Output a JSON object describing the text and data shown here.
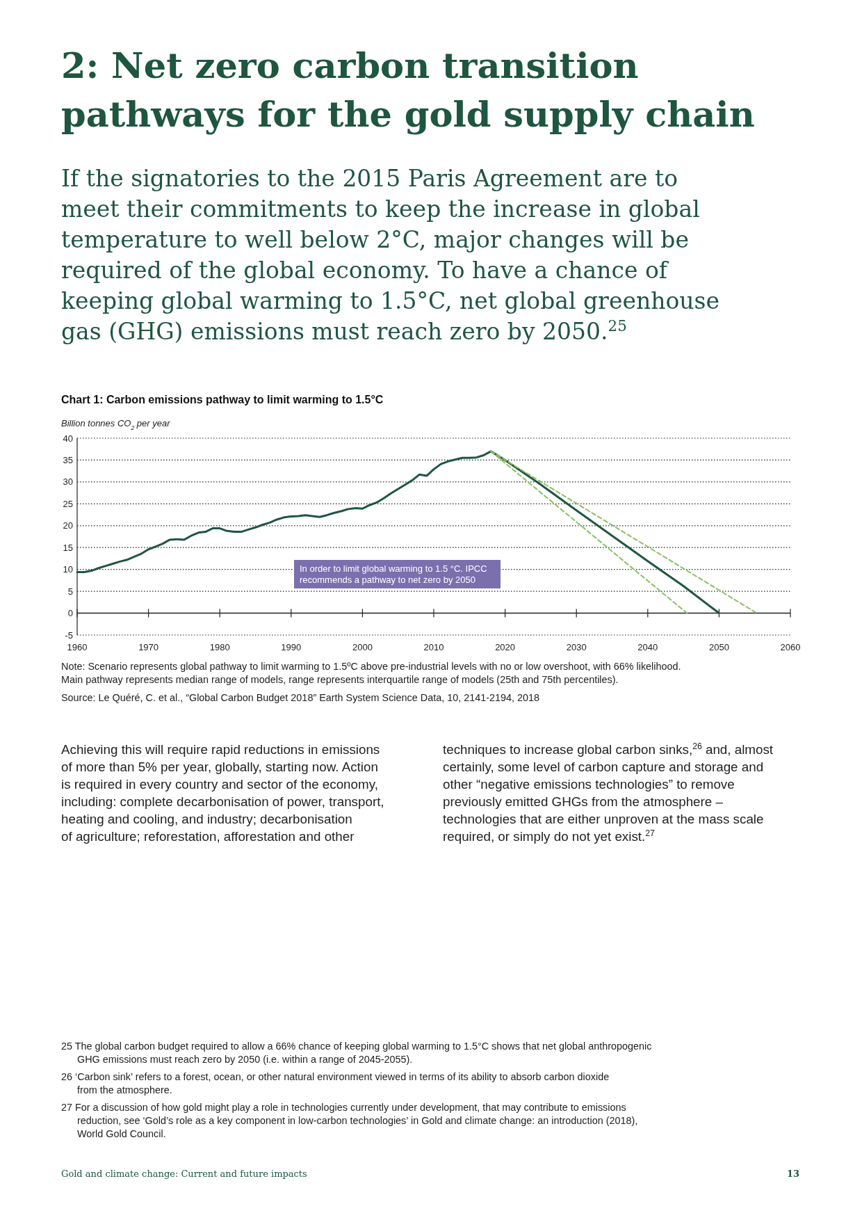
{
  "chart_data": {
    "type": "line",
    "title": "Chart 1: Carbon emissions pathway to limit warming to 1.5°C",
    "ylabel": "Billion tonnes CO$_{2}$ per year",
    "xlim": [
      1960,
      2060
    ],
    "xticks": [
      1960,
      1970,
      1980,
      1990,
      2000,
      2010,
      2020,
      2030,
      2040,
      2050,
      2060
    ],
    "ylim": [
      -5,
      40
    ],
    "yticks": [
      -5,
      0,
      5,
      10,
      15,
      20,
      25,
      30,
      35,
      40
    ],
    "grid": "y",
    "marker": "none",
    "series": [
      {
        "color": "#1e5640",
        "line_style": "solid",
        "x": [
          1960,
          1961,
          1962,
          1963,
          1964,
          1965,
          1966,
          1967,
          1968,
          1969,
          1970,
          1971,
          1972,
          1973,
          1974,
          1975,
          1976,
          1977,
          1978,
          1979,
          1980,
          1981,
          1982,
          1983,
          1984,
          1985,
          1986,
          1987,
          1988,
          1989,
          1990,
          1991,
          1992,
          1993,
          1994,
          1995,
          1996,
          1997,
          1998,
          1999,
          2000,
          2001,
          2002,
          2003,
          2004,
          2005,
          2006,
          2007,
          2008,
          2009,
          2010,
          2011,
          2012,
          2013,
          2014,
          2015,
          2016,
          2017,
          2018,
          2020,
          2025,
          2030,
          2035,
          2040,
          2045,
          2050
        ],
        "values": [
          9.4,
          9.4,
          9.7,
          10.3,
          10.8,
          11.3,
          11.8,
          12.2,
          12.9,
          13.6,
          14.6,
          15.2,
          15.9,
          16.8,
          16.9,
          16.8,
          17.7,
          18.4,
          18.6,
          19.4,
          19.4,
          18.8,
          18.6,
          18.6,
          19.1,
          19.6,
          20.2,
          20.7,
          21.4,
          21.9,
          22.1,
          22.2,
          22.4,
          22.2,
          22.0,
          22.4,
          22.9,
          23.3,
          23.8,
          24.0,
          23.9,
          24.7,
          25.3,
          26.3,
          27.4,
          28.4,
          29.4,
          30.4,
          31.7,
          31.4,
          32.9,
          34.1,
          34.7,
          35.1,
          35.5,
          35.5,
          35.6,
          36.1,
          37.0,
          35.0,
          29.4,
          23.5,
          17.7,
          11.9,
          6.2,
          0
        ]
      },
      {
        "color": "#8cc063",
        "line_style": "dashed",
        "x": [
          2018,
          2045.5
        ],
        "values": [
          37.0,
          0
        ]
      },
      {
        "color": "#8cc063",
        "line_style": "dashed",
        "x": [
          2018,
          2055.3
        ],
        "values": [
          37.0,
          0
        ]
      }
    ],
    "annotations": [
      "2: Net zero carbon transition\npathways for the gold supply chain",
      "If the signatories to the 2015 Paris Agreement are to\nmeet their commitments to keep the increase in global\ntemperature to well below 2°C, major changes will be\nrequired of the global economy. To have a chance of\nkeeping global warming to 1.5°C, net global greenhouse\ngas (GHG) emissions must reach zero by 2050.$^{25}$",
      "In order to limit global warming to 1.5 °C. IPCC\nrecommends a pathway to net zero by 2050",
      "Note: Scenario represents global pathway to limit warming to 1.5ºC above pre-industrial levels with no or low overshoot, with 66% likelihood.\nMain pathway represents median range of models, range represents interquartile range of models (25th and 75th percentiles).",
      "Source: Le Quéré, C. et al., “Global Carbon Budget 2018” Earth System Science Data, 10, 2141-2194, 2018",
      "Achieving this will require rapid reductions in emissions\nof more than 5% per year, globally, starting now. Action\nis required in every country and sector of the economy,\nincluding: complete decarbonisation of power, transport,\nheating and cooling, and industry; decarbonisation\nof agriculture; reforestation, afforestation and other",
      "techniques to increase global carbon sinks,$^{26}$ and, almost\ncertainly, some level of carbon capture and storage and\nother “negative emissions technologies” to remove\npreviously emitted GHGs from the atmosphere –\ntechnologies that are either unproven at the mass scale\nrequired, or simply do not yet exist.$^{27}$",
      "25 The global carbon budget required to allow a 66% chance of keeping global warming to 1.5°C shows that net global anthropogenic\nGHG emissions must reach zero by 2050 (i.e. within a range of 2045-2055).",
      "26 ‘Carbon sink’ refers to a forest, ocean, or other natural environment viewed in terms of its ability to absorb carbon dioxide\nfrom the atmosphere.",
      "27 For a discussion of how gold might play a role in technologies currently under development, that may contribute to emissions\nreduction, see ‘Gold’s role as a key component in low-carbon technologies’ in Gold and climate change: an introduction (2018),\nWorld Gold Council.",
      "Gold and climate change: Current and future impacts",
      "13"
    ]
  }
}
